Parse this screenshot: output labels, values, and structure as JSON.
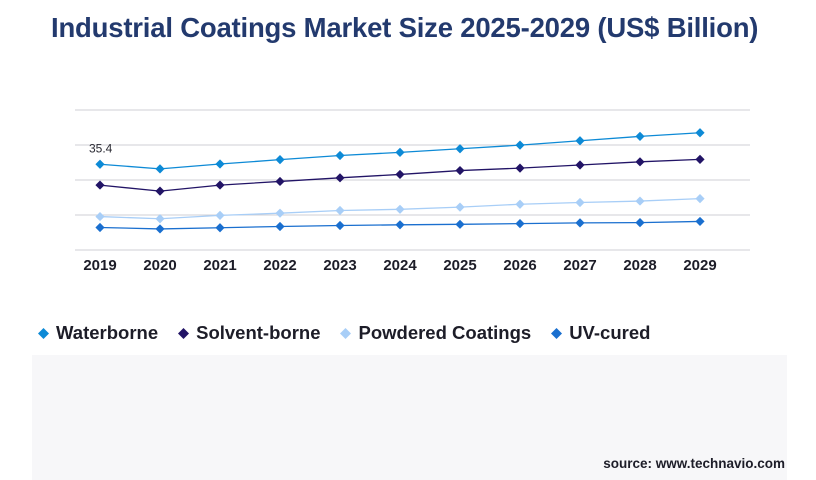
{
  "title": "Industrial Coatings Market Size 2025-2029 (US$ Billion)",
  "source": "source: www.technavio.com",
  "chart_data": {
    "type": "line",
    "title": "Industrial Coatings Market Size 2025-2029 (US$ Billion)",
    "x": [
      "2019",
      "2020",
      "2021",
      "2022",
      "2023",
      "2024",
      "2025",
      "2026",
      "2027",
      "2028",
      "2029"
    ],
    "ylim": [
      0,
      57.8
    ],
    "grid": true,
    "legend_position": "bottom-left",
    "annotations": [
      {
        "series": "Waterborne",
        "x": "2019",
        "text": "35.4"
      }
    ],
    "series": [
      {
        "name": "Waterborne",
        "color": "#0d8ad6",
        "values": [
          35.4,
          33.5,
          35.5,
          37.3,
          39.0,
          40.3,
          41.8,
          43.3,
          45.1,
          46.9,
          48.4
        ]
      },
      {
        "name": "Solvent-borne",
        "color": "#221466",
        "values": [
          26.8,
          24.3,
          26.8,
          28.3,
          29.8,
          31.2,
          32.8,
          33.8,
          35.1,
          36.4,
          37.4
        ]
      },
      {
        "name": "Powdered Coatings",
        "color": "#a8cef7",
        "values": [
          13.8,
          12.9,
          14.3,
          15.2,
          16.3,
          16.8,
          17.7,
          18.9,
          19.6,
          20.2,
          21.2
        ]
      },
      {
        "name": "UV-cured",
        "color": "#1a6fcf",
        "values": [
          9.3,
          8.7,
          9.2,
          9.7,
          10.1,
          10.4,
          10.6,
          10.9,
          11.2,
          11.3,
          11.8
        ]
      }
    ]
  }
}
